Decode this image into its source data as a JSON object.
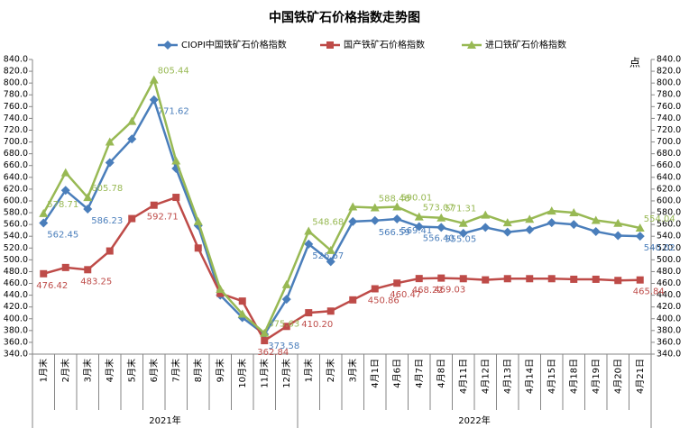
{
  "chart_data": {
    "type": "line",
    "title": "中国铁矿石价格指数走势图",
    "y2_axis_label": "点",
    "category_groups": [
      {
        "label": "2021年",
        "categories": [
          "1月末",
          "2月末",
          "3月末",
          "4月末",
          "5月末",
          "6月末",
          "7月末",
          "8月末",
          "9月末",
          "10月末",
          "11月末",
          "12月末"
        ]
      },
      {
        "label": "2022年",
        "categories": [
          "1月末",
          "2月末",
          "3月末",
          "4月1日",
          "4月6日",
          "4月7日",
          "4月8日",
          "4月11日",
          "4月12日",
          "4月13日",
          "4月14日",
          "4月15日",
          "4月18日",
          "4月19日",
          "4月20日",
          "4月21日"
        ]
      }
    ],
    "series": [
      {
        "name": "CIOPI中国铁矿石价格指数",
        "color": "#4a7ebb",
        "marker": "diamond",
        "values": [
          562.45,
          618,
          586.23,
          665,
          705,
          771.62,
          655,
          558,
          440,
          402,
          373.58,
          433,
          526.67,
          497,
          565,
          566.59,
          569.41,
          556.4,
          555.05,
          545,
          555,
          547,
          551,
          563,
          560,
          548,
          541,
          540.02
        ],
        "value_labels": [
          "562.45",
          null,
          "586.23",
          null,
          null,
          "771.62",
          null,
          null,
          null,
          null,
          "373.58",
          null,
          "526.67",
          null,
          null,
          "566.59",
          "569.41",
          "556.40",
          "555.05",
          null,
          null,
          null,
          null,
          null,
          null,
          null,
          null,
          "540.02"
        ]
      },
      {
        "name": "国产铁矿石价格指数",
        "color": "#be4b48",
        "marker": "square",
        "values": [
          476.42,
          487,
          483.25,
          515,
          570,
          592.71,
          606,
          520,
          443,
          430,
          362.84,
          387,
          410.2,
          413,
          432,
          450.86,
          460.47,
          468.22,
          469.03,
          468,
          466,
          468,
          468,
          468,
          467,
          467,
          465,
          465.84
        ],
        "value_labels": [
          "476.42",
          null,
          "483.25",
          null,
          null,
          "592.71",
          null,
          null,
          null,
          null,
          "362.84",
          null,
          "410.20",
          null,
          null,
          "450.86",
          "460.47",
          "468.22",
          "469.03",
          null,
          null,
          null,
          null,
          null,
          null,
          null,
          null,
          "465.84"
        ]
      },
      {
        "name": "进口铁矿石价格指数",
        "color": "#98b954",
        "marker": "triangle",
        "values": [
          578.71,
          648,
          605.78,
          700,
          735,
          805.44,
          668,
          565,
          450,
          408,
          375.63,
          458,
          548.68,
          516,
          590,
          588.48,
          590.01,
          573.07,
          571.31,
          562,
          576,
          563,
          569,
          583,
          580,
          567,
          562,
          554.04
        ],
        "value_labels": [
          "578.71",
          null,
          "605.78",
          null,
          null,
          "805.44",
          null,
          null,
          null,
          null,
          "375.63",
          null,
          "548.68",
          null,
          null,
          "588.48",
          "590.01",
          "573.07",
          "571.31",
          null,
          null,
          null,
          null,
          null,
          null,
          null,
          null,
          "554.04"
        ]
      }
    ],
    "ylim": [
      340,
      840
    ],
    "yticks": [
      {
        "value": 340,
        "label": "340.0"
      },
      {
        "value": 360,
        "label": "360.0"
      },
      {
        "value": 380,
        "label": "380.0"
      },
      {
        "value": 400,
        "label": "400.0"
      },
      {
        "value": 420,
        "label": "420.0"
      },
      {
        "value": 440,
        "label": "440.0"
      },
      {
        "value": 460,
        "label": "460.0"
      },
      {
        "value": 480,
        "label": "480.0"
      },
      {
        "value": 500,
        "label": "500.0"
      },
      {
        "value": 520,
        "label": "520.0"
      },
      {
        "value": 540,
        "label": "540.0"
      },
      {
        "value": 560,
        "label": "560.0"
      },
      {
        "value": 580,
        "label": "580.0"
      },
      {
        "value": 600,
        "label": "600.0"
      },
      {
        "value": 620,
        "label": "620.0"
      },
      {
        "value": 640,
        "label": "640.0"
      },
      {
        "value": 660,
        "label": "660.0"
      },
      {
        "value": 680,
        "label": "680.0"
      },
      {
        "value": 700,
        "label": "700.0"
      },
      {
        "value": 720,
        "label": "720.0"
      },
      {
        "value": 740,
        "label": "740.0"
      },
      {
        "value": 760,
        "label": "760.0"
      },
      {
        "value": 780,
        "label": "780.0"
      },
      {
        "value": 800,
        "label": "800.0"
      },
      {
        "value": 820,
        "label": "820.0"
      },
      {
        "value": 840,
        "label": "840.0"
      }
    ],
    "y2lim": [
      340,
      840
    ],
    "y2ticks": [
      {
        "value": 340,
        "label": "340.0"
      },
      {
        "value": 360,
        "label": "360.0"
      },
      {
        "value": 380,
        "label": "380.0"
      },
      {
        "value": 400,
        "label": "400.0"
      },
      {
        "value": 420,
        "label": "420.0"
      },
      {
        "value": 440,
        "label": "440.0"
      },
      {
        "value": 460,
        "label": "460.0"
      },
      {
        "value": 480,
        "label": "480.0"
      },
      {
        "value": 500,
        "label": "500.0"
      },
      {
        "value": 520,
        "label": "520.0"
      },
      {
        "value": 540,
        "label": "540.0"
      },
      {
        "value": 560,
        "label": "560.0"
      },
      {
        "value": 580,
        "label": "580.0"
      },
      {
        "value": 600,
        "label": "600.0"
      },
      {
        "value": 620,
        "label": "620.0"
      },
      {
        "value": 640,
        "label": "640.0"
      },
      {
        "value": 660,
        "label": "660.0"
      },
      {
        "value": 680,
        "label": "680.0"
      },
      {
        "value": 700,
        "label": "700.0"
      },
      {
        "value": 720,
        "label": "720.0"
      },
      {
        "value": 740,
        "label": "740.0"
      },
      {
        "value": 760,
        "label": "760.0"
      },
      {
        "value": 780,
        "label": "780.0"
      },
      {
        "value": 800,
        "label": "800.0"
      },
      {
        "value": 820,
        "label": "820.0"
      },
      {
        "value": 840,
        "label": "840.0"
      }
    ],
    "legend": "top",
    "grid": false
  }
}
